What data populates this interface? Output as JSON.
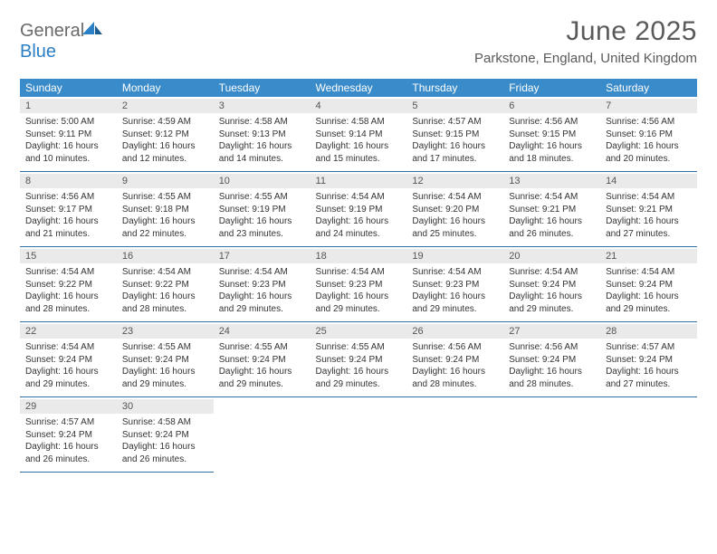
{
  "brand": {
    "general": "General",
    "blue": "Blue"
  },
  "title": "June 2025",
  "location": "Parkstone, England, United Kingdom",
  "colors": {
    "header_bg": "#3a8bc9",
    "header_text": "#ffffff",
    "daynum_bg": "#eaeaea",
    "daynum_text": "#555555",
    "rule": "#2f6fa5",
    "body_text": "#333333",
    "title_text": "#5a5a5a",
    "logo_gray": "#6a6a6a",
    "logo_blue": "#2b7fc4"
  },
  "day_headers": [
    "Sunday",
    "Monday",
    "Tuesday",
    "Wednesday",
    "Thursday",
    "Friday",
    "Saturday"
  ],
  "weeks": [
    [
      {
        "n": "1",
        "sr": "Sunrise: 5:00 AM",
        "ss": "Sunset: 9:11 PM",
        "d1": "Daylight: 16 hours",
        "d2": "and 10 minutes."
      },
      {
        "n": "2",
        "sr": "Sunrise: 4:59 AM",
        "ss": "Sunset: 9:12 PM",
        "d1": "Daylight: 16 hours",
        "d2": "and 12 minutes."
      },
      {
        "n": "3",
        "sr": "Sunrise: 4:58 AM",
        "ss": "Sunset: 9:13 PM",
        "d1": "Daylight: 16 hours",
        "d2": "and 14 minutes."
      },
      {
        "n": "4",
        "sr": "Sunrise: 4:58 AM",
        "ss": "Sunset: 9:14 PM",
        "d1": "Daylight: 16 hours",
        "d2": "and 15 minutes."
      },
      {
        "n": "5",
        "sr": "Sunrise: 4:57 AM",
        "ss": "Sunset: 9:15 PM",
        "d1": "Daylight: 16 hours",
        "d2": "and 17 minutes."
      },
      {
        "n": "6",
        "sr": "Sunrise: 4:56 AM",
        "ss": "Sunset: 9:15 PM",
        "d1": "Daylight: 16 hours",
        "d2": "and 18 minutes."
      },
      {
        "n": "7",
        "sr": "Sunrise: 4:56 AM",
        "ss": "Sunset: 9:16 PM",
        "d1": "Daylight: 16 hours",
        "d2": "and 20 minutes."
      }
    ],
    [
      {
        "n": "8",
        "sr": "Sunrise: 4:56 AM",
        "ss": "Sunset: 9:17 PM",
        "d1": "Daylight: 16 hours",
        "d2": "and 21 minutes."
      },
      {
        "n": "9",
        "sr": "Sunrise: 4:55 AM",
        "ss": "Sunset: 9:18 PM",
        "d1": "Daylight: 16 hours",
        "d2": "and 22 minutes."
      },
      {
        "n": "10",
        "sr": "Sunrise: 4:55 AM",
        "ss": "Sunset: 9:19 PM",
        "d1": "Daylight: 16 hours",
        "d2": "and 23 minutes."
      },
      {
        "n": "11",
        "sr": "Sunrise: 4:54 AM",
        "ss": "Sunset: 9:19 PM",
        "d1": "Daylight: 16 hours",
        "d2": "and 24 minutes."
      },
      {
        "n": "12",
        "sr": "Sunrise: 4:54 AM",
        "ss": "Sunset: 9:20 PM",
        "d1": "Daylight: 16 hours",
        "d2": "and 25 minutes."
      },
      {
        "n": "13",
        "sr": "Sunrise: 4:54 AM",
        "ss": "Sunset: 9:21 PM",
        "d1": "Daylight: 16 hours",
        "d2": "and 26 minutes."
      },
      {
        "n": "14",
        "sr": "Sunrise: 4:54 AM",
        "ss": "Sunset: 9:21 PM",
        "d1": "Daylight: 16 hours",
        "d2": "and 27 minutes."
      }
    ],
    [
      {
        "n": "15",
        "sr": "Sunrise: 4:54 AM",
        "ss": "Sunset: 9:22 PM",
        "d1": "Daylight: 16 hours",
        "d2": "and 28 minutes."
      },
      {
        "n": "16",
        "sr": "Sunrise: 4:54 AM",
        "ss": "Sunset: 9:22 PM",
        "d1": "Daylight: 16 hours",
        "d2": "and 28 minutes."
      },
      {
        "n": "17",
        "sr": "Sunrise: 4:54 AM",
        "ss": "Sunset: 9:23 PM",
        "d1": "Daylight: 16 hours",
        "d2": "and 29 minutes."
      },
      {
        "n": "18",
        "sr": "Sunrise: 4:54 AM",
        "ss": "Sunset: 9:23 PM",
        "d1": "Daylight: 16 hours",
        "d2": "and 29 minutes."
      },
      {
        "n": "19",
        "sr": "Sunrise: 4:54 AM",
        "ss": "Sunset: 9:23 PM",
        "d1": "Daylight: 16 hours",
        "d2": "and 29 minutes."
      },
      {
        "n": "20",
        "sr": "Sunrise: 4:54 AM",
        "ss": "Sunset: 9:24 PM",
        "d1": "Daylight: 16 hours",
        "d2": "and 29 minutes."
      },
      {
        "n": "21",
        "sr": "Sunrise: 4:54 AM",
        "ss": "Sunset: 9:24 PM",
        "d1": "Daylight: 16 hours",
        "d2": "and 29 minutes."
      }
    ],
    [
      {
        "n": "22",
        "sr": "Sunrise: 4:54 AM",
        "ss": "Sunset: 9:24 PM",
        "d1": "Daylight: 16 hours",
        "d2": "and 29 minutes."
      },
      {
        "n": "23",
        "sr": "Sunrise: 4:55 AM",
        "ss": "Sunset: 9:24 PM",
        "d1": "Daylight: 16 hours",
        "d2": "and 29 minutes."
      },
      {
        "n": "24",
        "sr": "Sunrise: 4:55 AM",
        "ss": "Sunset: 9:24 PM",
        "d1": "Daylight: 16 hours",
        "d2": "and 29 minutes."
      },
      {
        "n": "25",
        "sr": "Sunrise: 4:55 AM",
        "ss": "Sunset: 9:24 PM",
        "d1": "Daylight: 16 hours",
        "d2": "and 29 minutes."
      },
      {
        "n": "26",
        "sr": "Sunrise: 4:56 AM",
        "ss": "Sunset: 9:24 PM",
        "d1": "Daylight: 16 hours",
        "d2": "and 28 minutes."
      },
      {
        "n": "27",
        "sr": "Sunrise: 4:56 AM",
        "ss": "Sunset: 9:24 PM",
        "d1": "Daylight: 16 hours",
        "d2": "and 28 minutes."
      },
      {
        "n": "28",
        "sr": "Sunrise: 4:57 AM",
        "ss": "Sunset: 9:24 PM",
        "d1": "Daylight: 16 hours",
        "d2": "and 27 minutes."
      }
    ],
    [
      {
        "n": "29",
        "sr": "Sunrise: 4:57 AM",
        "ss": "Sunset: 9:24 PM",
        "d1": "Daylight: 16 hours",
        "d2": "and 26 minutes."
      },
      {
        "n": "30",
        "sr": "Sunrise: 4:58 AM",
        "ss": "Sunset: 9:24 PM",
        "d1": "Daylight: 16 hours",
        "d2": "and 26 minutes."
      },
      null,
      null,
      null,
      null,
      null
    ]
  ]
}
